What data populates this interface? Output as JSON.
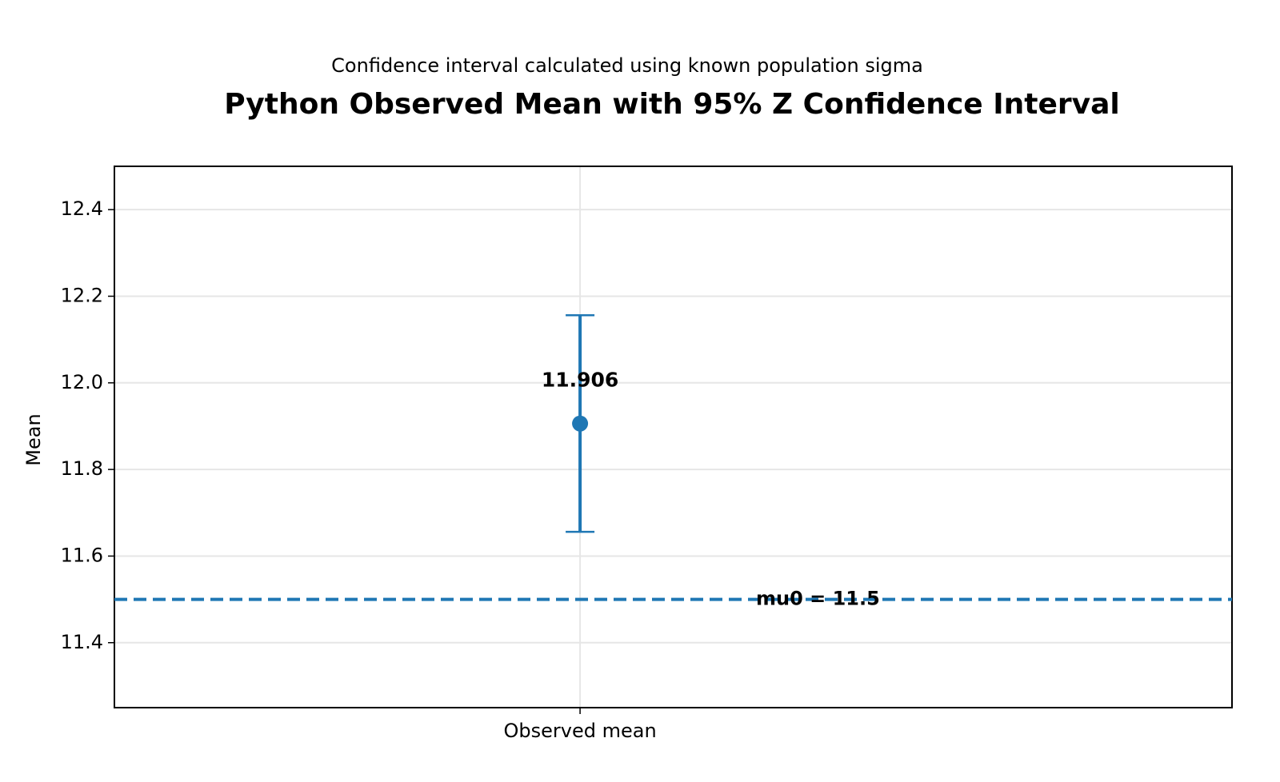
{
  "chart_data": {
    "type": "errorbar",
    "subtitle": "Confidence interval calculated using known population sigma",
    "title": "Python Observed Mean with 95% Z Confidence Interval",
    "ylabel": "Mean",
    "categories": [
      "Observed mean"
    ],
    "values": [
      11.906
    ],
    "errors": [
      0.25
    ],
    "color": "#1f77b4",
    "reference": {
      "value": 11.5,
      "label": "mu0 = 11.5"
    },
    "ylim": [
      11.25,
      12.5
    ],
    "yticks": [
      {
        "value": 11.4,
        "label": "11.4"
      },
      {
        "value": 11.6,
        "label": "11.6"
      },
      {
        "value": 11.8,
        "label": "11.8"
      },
      {
        "value": 12.0,
        "label": "12.0"
      },
      {
        "value": 12.2,
        "label": "12.2"
      },
      {
        "value": 12.4,
        "label": "12.4"
      }
    ],
    "grid": true
  }
}
